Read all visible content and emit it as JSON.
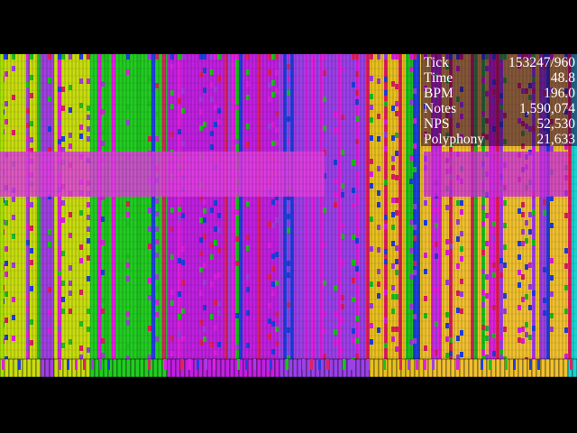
{
  "stats": {
    "rows": [
      {
        "label": "Tick",
        "value": "153247/960"
      },
      {
        "label": "Time",
        "value": "48.8"
      },
      {
        "label": "BPM",
        "value": "196.0"
      },
      {
        "label": "Notes",
        "value": "1,590,074"
      },
      {
        "label": "NPS",
        "value": "52,530"
      },
      {
        "label": "Polyphony",
        "value": "21,633"
      }
    ]
  }
}
